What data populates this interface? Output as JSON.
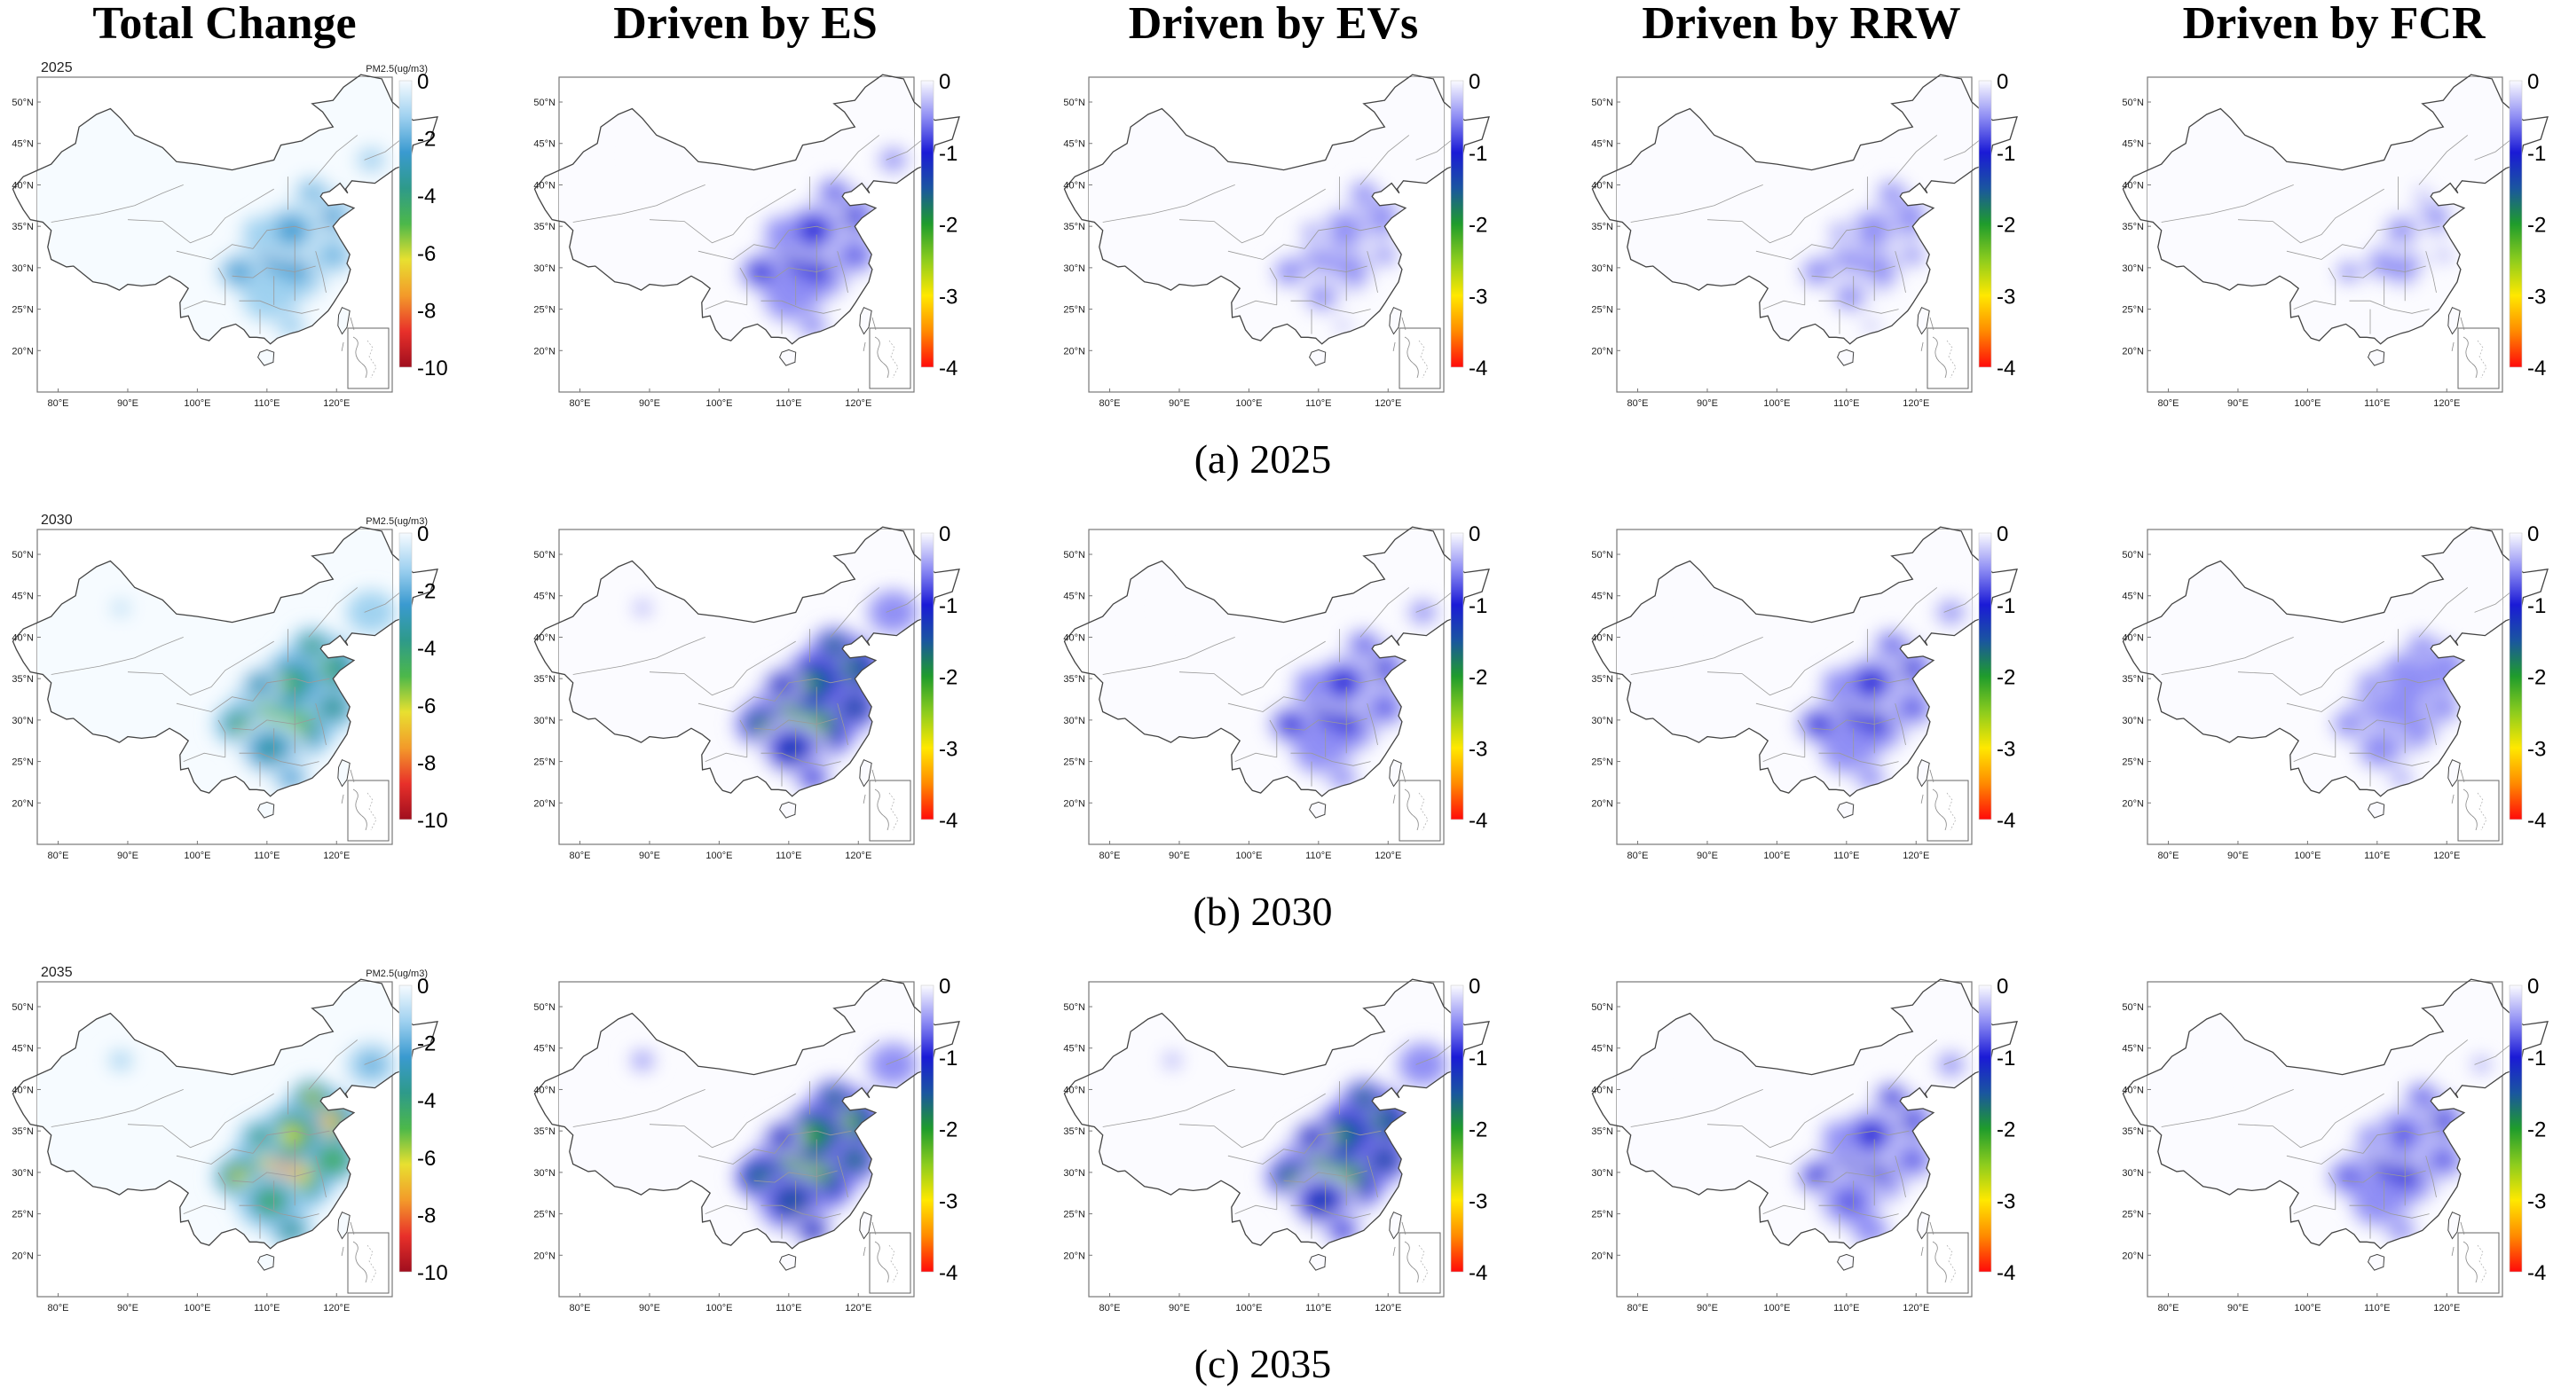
{
  "column_titles": [
    "Total Change",
    "Driven by ES",
    "Driven by EVs",
    "Driven by RRW",
    "Driven by FCR"
  ],
  "row_captions": [
    "(a) 2025",
    "(b) 2030",
    "(c) 2035"
  ],
  "panel_year_labels": [
    "2025",
    "2030",
    "2035"
  ],
  "unit_label": "PM2.5(ug/m3)",
  "lat_labels": [
    "50°N",
    "45°N",
    "40°N",
    "35°N",
    "30°N",
    "25°N",
    "20°N"
  ],
  "lon_labels": [
    "80°E",
    "90°E",
    "100°E",
    "110°E",
    "120°E"
  ],
  "colorbars": {
    "total": {
      "ticks": [
        "0",
        "-2",
        "-4",
        "-6",
        "-8",
        "-10"
      ],
      "colors": [
        "#f6fbff",
        "#9fd1f0",
        "#3a9ad0",
        "#2e9a8a",
        "#4cb84a",
        "#e8e030",
        "#f39a2a",
        "#e8302a",
        "#a00e1e"
      ]
    },
    "driver": {
      "ticks": [
        "0",
        "-1",
        "-2",
        "-3",
        "-4"
      ],
      "colors": [
        "#fbfbff",
        "#8f8ef4",
        "#1a1ad6",
        "#1a55a0",
        "#1f9c2c",
        "#8ccc1e",
        "#ffe800",
        "#ff8a00",
        "#ff0a0a"
      ]
    }
  },
  "panels": [
    {
      "row": "2025",
      "column": "Total Change",
      "max_reduction": 3.0,
      "min": -10,
      "max": 0
    },
    {
      "row": "2025",
      "column": "Driven by ES",
      "max_reduction": 1.2,
      "min": -4,
      "max": 0
    },
    {
      "row": "2025",
      "column": "Driven by EVs",
      "max_reduction": 0.6,
      "min": -4,
      "max": 0
    },
    {
      "row": "2025",
      "column": "Driven by RRW",
      "max_reduction": 0.6,
      "min": -4,
      "max": 0
    },
    {
      "row": "2025",
      "column": "Driven by FCR",
      "max_reduction": 0.4,
      "min": -4,
      "max": 0
    },
    {
      "row": "2030",
      "column": "Total Change",
      "max_reduction": 6.0,
      "min": -10,
      "max": 0
    },
    {
      "row": "2030",
      "column": "Driven by ES",
      "max_reduction": 2.4,
      "min": -4,
      "max": 0
    },
    {
      "row": "2030",
      "column": "Driven by EVs",
      "max_reduction": 1.2,
      "min": -4,
      "max": 0
    },
    {
      "row": "2030",
      "column": "Driven by RRW",
      "max_reduction": 1.2,
      "min": -4,
      "max": 0
    },
    {
      "row": "2030",
      "column": "Driven by FCR",
      "max_reduction": 0.8,
      "min": -4,
      "max": 0
    },
    {
      "row": "2035",
      "column": "Total Change",
      "max_reduction": 8.0,
      "min": -10,
      "max": 0
    },
    {
      "row": "2035",
      "column": "Driven by ES",
      "max_reduction": 2.6,
      "min": -4,
      "max": 0
    },
    {
      "row": "2035",
      "column": "Driven by EVs",
      "max_reduction": 2.4,
      "min": -4,
      "max": 0
    },
    {
      "row": "2035",
      "column": "Driven by RRW",
      "max_reduction": 1.3,
      "min": -4,
      "max": 0
    },
    {
      "row": "2035",
      "column": "Driven by FCR",
      "max_reduction": 1.1,
      "min": -4,
      "max": 0
    }
  ]
}
